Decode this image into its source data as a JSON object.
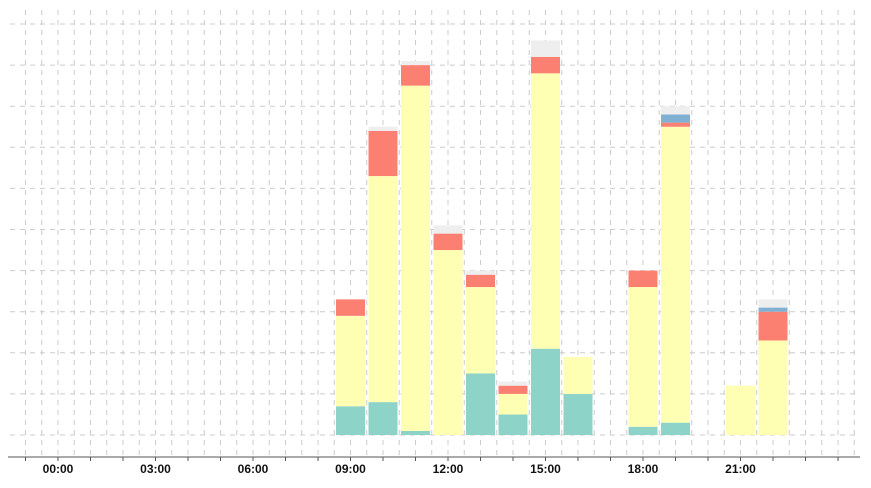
{
  "chart_data": {
    "type": "bar",
    "stacked": true,
    "title": "",
    "xlabel": "",
    "ylabel": "",
    "x_hours": [
      0,
      1,
      2,
      3,
      4,
      5,
      6,
      7,
      8,
      9,
      10,
      11,
      12,
      13,
      14,
      15,
      16,
      17,
      18,
      19,
      20,
      21,
      22
    ],
    "x_tick_labels": [
      "00:00",
      "03:00",
      "06:00",
      "09:00",
      "12:00",
      "15:00",
      "18:00",
      "21:00"
    ],
    "x_tick_hours": [
      0,
      3,
      6,
      9,
      12,
      15,
      18,
      21
    ],
    "ylim": [
      0,
      10.3
    ],
    "y_gridlines": [
      0,
      1,
      2,
      3,
      4,
      5,
      6,
      7,
      8,
      9,
      10
    ],
    "y_tick_labels_visible": false,
    "grid": true,
    "series": [
      {
        "color": "#8dd3c7",
        "values": [
          0,
          0,
          0,
          0,
          0,
          0,
          0,
          0,
          0,
          0.7,
          0.8,
          0.1,
          0,
          1.5,
          0.5,
          2.1,
          1.0,
          0,
          0.2,
          0.3,
          0,
          0,
          0
        ]
      },
      {
        "color": "#ffffb3",
        "values": [
          0,
          0,
          0,
          0,
          0,
          0,
          0,
          0,
          0,
          2.2,
          5.5,
          8.4,
          4.5,
          2.1,
          0.5,
          6.7,
          0.9,
          0,
          3.4,
          7.2,
          0,
          1.2,
          2.3
        ]
      },
      {
        "color": "#fb8072",
        "values": [
          0,
          0,
          0,
          0,
          0,
          0,
          0,
          0,
          0,
          0.4,
          1.1,
          0.5,
          0.4,
          0.3,
          0.2,
          0.4,
          0,
          0,
          0.4,
          0.1,
          0,
          0,
          0.7
        ]
      },
      {
        "color": "#80b1d3",
        "values": [
          0,
          0,
          0,
          0,
          0,
          0,
          0,
          0,
          0,
          0,
          0,
          0,
          0,
          0,
          0,
          0,
          0,
          0,
          0,
          0.2,
          0,
          0,
          0.1
        ]
      },
      {
        "color": "#eeeeee",
        "values": [
          0,
          0,
          0,
          0,
          0,
          0,
          0,
          0,
          0,
          0,
          0.1,
          0.1,
          0.2,
          0.1,
          0.1,
          0.4,
          0,
          0,
          0,
          0.2,
          0,
          0,
          0.2
        ]
      }
    ]
  }
}
